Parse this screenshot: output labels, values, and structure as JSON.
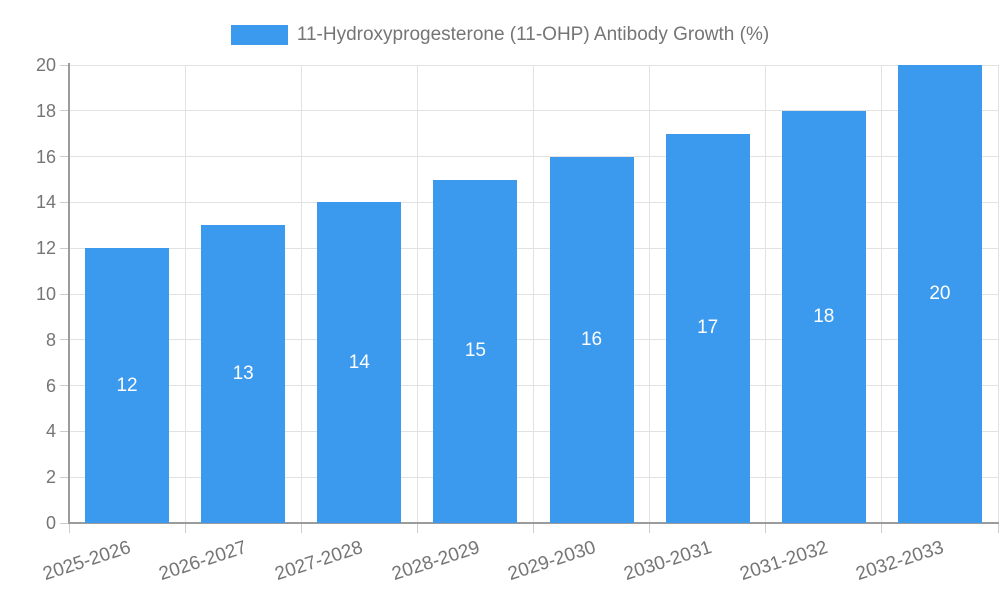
{
  "chart_data": {
    "type": "bar",
    "title": "11-Hydroxyprogesterone (11-OHP) Antibody Growth (%)",
    "categories": [
      "2025-2026",
      "2026-2027",
      "2027-2028",
      "2028-2029",
      "2029-2030",
      "2030-2031",
      "2031-2032",
      "2032-2033"
    ],
    "values": [
      12,
      13,
      14,
      15,
      16,
      17,
      18,
      20
    ],
    "xlabel": "",
    "ylabel": "",
    "ylim": [
      0,
      20
    ],
    "ytick_step": 2,
    "grid": true,
    "legend_position": "top-center",
    "bar_color": "#3b99ee",
    "bar_label_color": "#ffffff",
    "axis_text_color": "#757575",
    "grid_color": "#e2e2e2",
    "axis_line_color": "#9b9b9b"
  }
}
